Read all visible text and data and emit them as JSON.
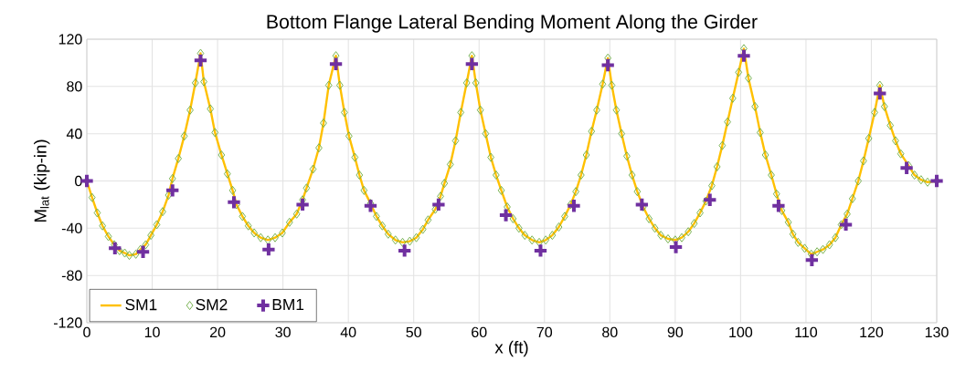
{
  "chart_data": {
    "type": "line",
    "title": "Bottom Flange Lateral Bending Moment Along the Girder",
    "xlabel": "x (ft)",
    "ylabel": "M$_{lat}$ (kip-in)",
    "xlim": [
      0,
      130
    ],
    "xticks": [
      0,
      10,
      20,
      30,
      40,
      50,
      60,
      70,
      80,
      90,
      100,
      110,
      120,
      130
    ],
    "ylim": [
      -120,
      120
    ],
    "yticks": [
      -120,
      -80,
      -40,
      0,
      40,
      80,
      120
    ],
    "grid": true,
    "legend": "bottom left",
    "series": [
      {
        "name": "SM1",
        "marker": "none",
        "color": "#ffc000",
        "x": [
          0,
          0.8,
          1.6,
          2.4,
          3.3,
          4.2,
          5.0,
          5.8,
          6.5,
          7.5,
          8.2,
          9.0,
          9.8,
          10.7,
          11.6,
          12.5,
          13.1,
          14.0,
          14.9,
          15.8,
          16.6,
          17.4,
          17.9,
          18.9,
          19.6,
          20.6,
          21.5,
          22.3,
          22.9,
          23.8,
          24.7,
          25.6,
          26.6,
          27.7,
          28.8,
          29.9,
          31.0,
          32.1,
          33.0,
          33.6,
          34.6,
          35.5,
          36.2,
          37.0,
          38.1,
          38.7,
          39.4,
          40.1,
          41.0,
          41.7,
          42.4,
          43.4,
          44.3,
          45.2,
          46.1,
          47.2,
          48.3,
          49.4,
          50.4,
          51.4,
          52.2,
          53.3,
          54.1,
          54.7,
          55.6,
          56.4,
          57.2,
          58.1,
          58.9,
          59.5,
          60.2,
          61.0,
          61.8,
          62.6,
          63.4,
          64.3,
          65.2,
          66.1,
          67.0,
          68.1,
          69.2,
          70.2,
          71.2,
          72.2,
          73.1,
          74.0,
          74.8,
          75.6,
          76.4,
          77.2,
          78.0,
          78.9,
          79.7,
          80.3,
          81.0,
          81.8,
          82.6,
          83.4,
          84.2,
          85.1,
          86.0,
          86.9,
          87.8,
          88.9,
          90.0,
          91.0,
          92.0,
          92.9,
          93.8,
          94.7,
          95.6,
          96.4,
          97.2,
          98.0,
          98.8,
          99.7,
          100.5,
          101.2,
          102.2,
          103.0,
          103.8,
          104.7,
          105.5,
          106.3,
          107.3,
          108.0,
          108.8,
          109.8,
          110.8,
          111.7,
          112.6,
          113.6,
          114.5,
          115.4,
          116.3,
          117.1,
          118.0,
          118.8,
          119.6,
          120.5,
          121.3,
          122.0,
          122.9,
          123.7,
          124.5,
          125.7,
          126.6,
          127.6,
          128.6,
          130
        ],
        "values": [
          0,
          -14,
          -27,
          -38,
          -47,
          -54,
          -59,
          -61,
          -63,
          -62,
          -58,
          -54,
          -46,
          -37,
          -26,
          -12,
          2,
          19,
          38,
          60,
          83,
          108,
          84,
          61,
          41,
          22,
          6,
          -8,
          -20,
          -30,
          -38,
          -44,
          -48,
          -50,
          -48,
          -44,
          -35,
          -28,
          -16,
          -6,
          10,
          28,
          49,
          81,
          106,
          81,
          58,
          38,
          20,
          5,
          -8,
          -19,
          -30,
          -38,
          -45,
          -50,
          -52,
          -51,
          -48,
          -41,
          -33,
          -24,
          -13,
          -2,
          14,
          34,
          58,
          83,
          106,
          83,
          60,
          40,
          20,
          5,
          -8,
          -22,
          -32,
          -40,
          -46,
          -50,
          -52,
          -50,
          -46,
          -39,
          -30,
          -20,
          -9,
          5,
          22,
          42,
          60,
          82,
          104,
          81,
          60,
          40,
          21,
          5,
          -9,
          -22,
          -32,
          -40,
          -46,
          -49,
          -50,
          -48,
          -43,
          -36,
          -27,
          -17,
          -4,
          12,
          30,
          50,
          70,
          92,
          112,
          87,
          63,
          41,
          22,
          5,
          -11,
          -25,
          -35,
          -45,
          -52,
          -57,
          -62,
          -60,
          -58,
          -54,
          -48,
          -37,
          -28,
          -15,
          0,
          17,
          36,
          58,
          81,
          63,
          47,
          34,
          23,
          13,
          5,
          1,
          -1,
          0
        ]
      },
      {
        "name": "SM2",
        "type": "scatter",
        "marker": "diamond",
        "color": "#70ad47",
        "x": [
          0,
          0.8,
          1.6,
          2.4,
          3.3,
          4.2,
          5.0,
          5.8,
          6.5,
          7.5,
          8.2,
          9.0,
          9.8,
          10.7,
          11.6,
          12.5,
          13.1,
          14.0,
          14.9,
          15.8,
          16.6,
          17.4,
          17.9,
          18.9,
          19.6,
          20.6,
          21.5,
          22.3,
          22.9,
          23.8,
          24.7,
          25.6,
          26.6,
          27.7,
          28.8,
          29.9,
          31.0,
          32.1,
          33.0,
          33.6,
          34.6,
          35.5,
          36.2,
          37.0,
          38.1,
          38.7,
          39.4,
          40.1,
          41.0,
          41.7,
          42.4,
          43.4,
          44.3,
          45.2,
          46.1,
          47.2,
          48.3,
          49.4,
          50.4,
          51.4,
          52.2,
          53.3,
          54.1,
          54.7,
          55.6,
          56.4,
          57.2,
          58.1,
          58.9,
          59.5,
          60.2,
          61.0,
          61.8,
          62.6,
          63.4,
          64.3,
          65.2,
          66.1,
          67.0,
          68.1,
          69.2,
          70.2,
          71.2,
          72.2,
          73.1,
          74.0,
          74.8,
          75.6,
          76.4,
          77.2,
          78.0,
          78.9,
          79.7,
          80.3,
          81.0,
          81.8,
          82.6,
          83.4,
          84.2,
          85.1,
          86.0,
          86.9,
          87.8,
          88.9,
          90.0,
          91.0,
          92.0,
          92.9,
          93.8,
          94.7,
          95.6,
          96.4,
          97.2,
          98.0,
          98.8,
          99.7,
          100.5,
          101.2,
          102.2,
          103.0,
          103.8,
          104.7,
          105.5,
          106.3,
          107.3,
          108.0,
          108.8,
          109.8,
          110.8,
          111.7,
          112.6,
          113.6,
          114.5,
          115.4,
          116.3,
          117.1,
          118.0,
          118.8,
          119.6,
          120.5,
          121.3,
          122.0,
          122.9,
          123.7,
          124.5,
          125.7,
          126.6,
          127.6,
          128.6,
          130
        ],
        "values": [
          0,
          -14,
          -27,
          -38,
          -47,
          -54,
          -59,
          -61,
          -63,
          -62,
          -58,
          -54,
          -46,
          -37,
          -26,
          -12,
          2,
          19,
          38,
          60,
          83,
          108,
          84,
          61,
          41,
          22,
          6,
          -8,
          -20,
          -30,
          -38,
          -44,
          -48,
          -50,
          -48,
          -44,
          -35,
          -28,
          -16,
          -6,
          10,
          28,
          49,
          81,
          106,
          81,
          58,
          38,
          20,
          5,
          -8,
          -19,
          -30,
          -38,
          -45,
          -50,
          -52,
          -51,
          -48,
          -41,
          -33,
          -24,
          -13,
          -2,
          14,
          34,
          58,
          83,
          106,
          83,
          60,
          40,
          20,
          5,
          -8,
          -22,
          -32,
          -40,
          -46,
          -50,
          -52,
          -50,
          -46,
          -39,
          -30,
          -20,
          -9,
          5,
          22,
          42,
          60,
          82,
          104,
          81,
          60,
          40,
          21,
          5,
          -9,
          -22,
          -32,
          -40,
          -46,
          -49,
          -50,
          -48,
          -43,
          -36,
          -27,
          -17,
          -4,
          12,
          30,
          50,
          70,
          92,
          112,
          87,
          63,
          41,
          22,
          5,
          -11,
          -25,
          -35,
          -45,
          -52,
          -57,
          -62,
          -60,
          -58,
          -54,
          -48,
          -37,
          -28,
          -15,
          0,
          17,
          36,
          58,
          81,
          63,
          47,
          34,
          23,
          13,
          5,
          1,
          -1,
          0
        ]
      },
      {
        "name": "BM1",
        "type": "scatter",
        "marker": "cross",
        "color": "#7030a0",
        "x": [
          0,
          4.3,
          8.6,
          13.1,
          17.4,
          22.5,
          27.8,
          33.0,
          38.1,
          43.4,
          48.6,
          53.8,
          58.9,
          64.1,
          69.4,
          74.5,
          79.7,
          84.9,
          90.1,
          95.3,
          100.5,
          105.8,
          110.9,
          116.1,
          121.3,
          125.4,
          130
        ],
        "values": [
          0,
          -57,
          -60,
          -8,
          102,
          -18,
          -58,
          -20,
          99,
          -21,
          -59,
          -20,
          99,
          -29,
          -59,
          -21,
          98,
          -20,
          -56,
          -16,
          106,
          -21,
          -67,
          -37,
          74,
          11,
          0
        ]
      }
    ]
  }
}
